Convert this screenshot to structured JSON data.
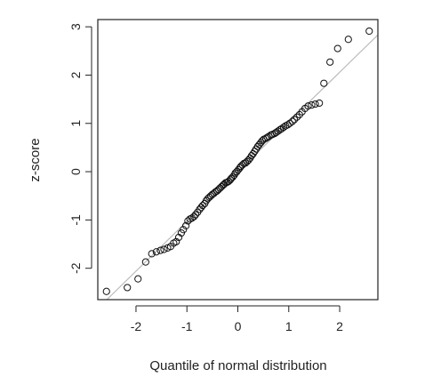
{
  "chart_data": {
    "type": "scatter",
    "title": "",
    "xlabel": "Quantile of normal distribution",
    "ylabel": "z-score",
    "xlim": [
      -2.75,
      2.75
    ],
    "ylim": [
      -2.65,
      3.15
    ],
    "xticks": [
      -2,
      -1,
      0,
      1,
      2
    ],
    "xtick_labels": [
      "-2",
      "-1",
      "0",
      "1",
      "2"
    ],
    "yticks": [
      -2,
      -1,
      0,
      1,
      2,
      3
    ],
    "ytick_labels": [
      "-2",
      "-1",
      "0",
      "1",
      "2",
      "3"
    ],
    "grid": false,
    "legend": "none",
    "reference_line": {
      "intercept": 0,
      "slope": 1.03,
      "color": "#bbbbbb"
    },
    "marker_color": "#111111",
    "series": [
      {
        "points": [
          [
            -2.58,
            -2.48
          ],
          [
            -2.17,
            -2.4
          ],
          [
            -1.96,
            -2.22
          ],
          [
            -1.81,
            -1.87
          ],
          [
            -1.69,
            -1.7
          ],
          [
            -1.6,
            -1.66
          ],
          [
            -1.52,
            -1.63
          ],
          [
            -1.45,
            -1.61
          ],
          [
            -1.38,
            -1.58
          ],
          [
            -1.32,
            -1.55
          ],
          [
            -1.26,
            -1.48
          ],
          [
            -1.21,
            -1.45
          ],
          [
            -1.16,
            -1.36
          ],
          [
            -1.11,
            -1.27
          ],
          [
            -1.07,
            -1.2
          ],
          [
            -1.02,
            -1.12
          ],
          [
            -0.98,
            -1.02
          ],
          [
            -0.94,
            -0.98
          ],
          [
            -0.9,
            -0.96
          ],
          [
            -0.86,
            -0.93
          ],
          [
            -0.83,
            -0.89
          ],
          [
            -0.79,
            -0.84
          ],
          [
            -0.75,
            -0.78
          ],
          [
            -0.72,
            -0.74
          ],
          [
            -0.69,
            -0.7
          ],
          [
            -0.65,
            -0.66
          ],
          [
            -0.62,
            -0.6
          ],
          [
            -0.59,
            -0.56
          ],
          [
            -0.56,
            -0.53
          ],
          [
            -0.53,
            -0.5
          ],
          [
            -0.5,
            -0.47
          ],
          [
            -0.47,
            -0.45
          ],
          [
            -0.44,
            -0.42
          ],
          [
            -0.41,
            -0.4
          ],
          [
            -0.38,
            -0.37
          ],
          [
            -0.35,
            -0.34
          ],
          [
            -0.32,
            -0.31
          ],
          [
            -0.29,
            -0.28
          ],
          [
            -0.27,
            -0.26
          ],
          [
            -0.24,
            -0.23
          ],
          [
            -0.21,
            -0.22
          ],
          [
            -0.18,
            -0.2
          ],
          [
            -0.15,
            -0.17
          ],
          [
            -0.13,
            -0.14
          ],
          [
            -0.1,
            -0.11
          ],
          [
            -0.07,
            -0.07
          ],
          [
            -0.05,
            -0.03
          ],
          [
            -0.02,
            0.0
          ],
          [
            0.01,
            0.04
          ],
          [
            0.04,
            0.08
          ],
          [
            0.06,
            0.11
          ],
          [
            0.09,
            0.14
          ],
          [
            0.12,
            0.17
          ],
          [
            0.15,
            0.18
          ],
          [
            0.18,
            0.21
          ],
          [
            0.21,
            0.24
          ],
          [
            0.24,
            0.28
          ],
          [
            0.27,
            0.33
          ],
          [
            0.3,
            0.37
          ],
          [
            0.33,
            0.42
          ],
          [
            0.36,
            0.47
          ],
          [
            0.39,
            0.52
          ],
          [
            0.42,
            0.56
          ],
          [
            0.45,
            0.6
          ],
          [
            0.48,
            0.64
          ],
          [
            0.51,
            0.67
          ],
          [
            0.55,
            0.69
          ],
          [
            0.58,
            0.71
          ],
          [
            0.61,
            0.73
          ],
          [
            0.65,
            0.76
          ],
          [
            0.68,
            0.77
          ],
          [
            0.72,
            0.79
          ],
          [
            0.75,
            0.81
          ],
          [
            0.79,
            0.84
          ],
          [
            0.83,
            0.87
          ],
          [
            0.86,
            0.89
          ],
          [
            0.9,
            0.92
          ],
          [
            0.94,
            0.95
          ],
          [
            0.98,
            0.97
          ],
          [
            1.02,
            1.0
          ],
          [
            1.07,
            1.04
          ],
          [
            1.11,
            1.08
          ],
          [
            1.16,
            1.13
          ],
          [
            1.21,
            1.18
          ],
          [
            1.26,
            1.24
          ],
          [
            1.32,
            1.31
          ],
          [
            1.38,
            1.36
          ],
          [
            1.45,
            1.38
          ],
          [
            1.52,
            1.4
          ],
          [
            1.6,
            1.42
          ],
          [
            1.69,
            1.83
          ],
          [
            1.81,
            2.27
          ],
          [
            1.96,
            2.55
          ],
          [
            2.17,
            2.74
          ],
          [
            2.58,
            2.91
          ]
        ]
      }
    ]
  }
}
